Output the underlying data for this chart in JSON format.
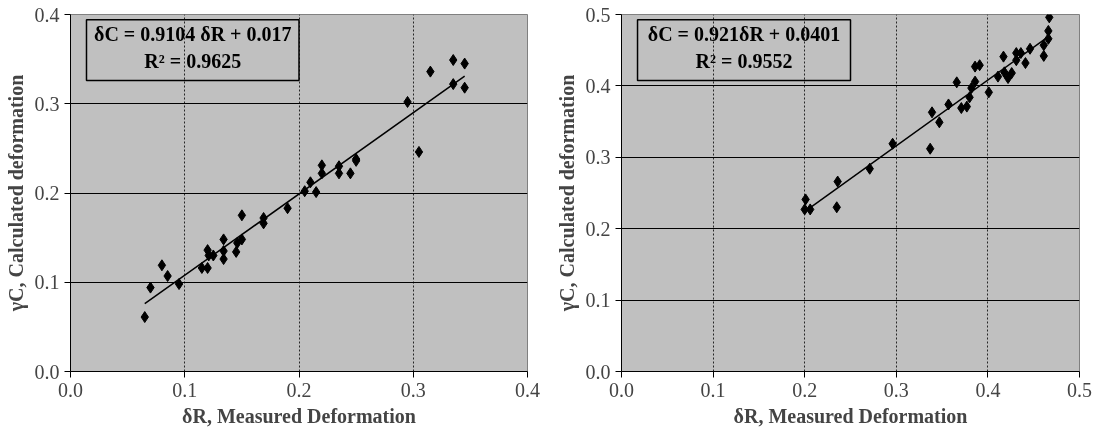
{
  "chart_data": [
    {
      "type": "scatter",
      "xlabel": "δR, Measured Deformation",
      "ylabel": "γC, Calculated deformation",
      "annotations": [
        "δC = 0.9104 δR + 0.017",
        "R² = 0.9625"
      ],
      "xlim": [
        0.0,
        0.4
      ],
      "ylim": [
        0.0,
        0.4
      ],
      "xticks": [
        {
          "value": 0,
          "label": "0.0"
        },
        0.1,
        0.2,
        0.3,
        0.4
      ],
      "yticks": [
        {
          "value": 0,
          "label": "0.0"
        },
        0.1,
        0.2,
        0.3,
        0.4
      ],
      "grid": true,
      "series": [
        {
          "type": "scatter",
          "marker": "diamond",
          "color": "#000000",
          "x": [
            0.065,
            0.07,
            0.08,
            0.085,
            0.095,
            0.115,
            0.12,
            0.12,
            0.121,
            0.125,
            0.134,
            0.134,
            0.134,
            0.145,
            0.146,
            0.15,
            0.15,
            0.169,
            0.169,
            0.19,
            0.205,
            0.21,
            0.215,
            0.22,
            0.22,
            0.235,
            0.235,
            0.245,
            0.25,
            0.25,
            0.295,
            0.305,
            0.315,
            0.335,
            0.335,
            0.345,
            0.345
          ],
          "values": [
            0.061,
            0.094,
            0.119,
            0.107,
            0.098,
            0.116,
            0.136,
            0.116,
            0.13,
            0.13,
            0.148,
            0.135,
            0.126,
            0.134,
            0.144,
            0.148,
            0.175,
            0.172,
            0.166,
            0.183,
            0.202,
            0.212,
            0.201,
            0.231,
            0.222,
            0.23,
            0.222,
            0.222,
            0.238,
            0.236,
            0.302,
            0.246,
            0.336,
            0.349,
            0.322,
            0.345,
            0.318
          ]
        },
        {
          "type": "line",
          "line_style": "solid",
          "color": "#000000",
          "x": [
            0.065,
            0.345
          ],
          "values": [
            0.076,
            0.331
          ]
        }
      ]
    },
    {
      "type": "scatter",
      "xlabel": "δR, Measured Deformation",
      "ylabel": "γC, Calculated deformation",
      "annotations": [
        "δC = 0.921δR + 0.0401",
        "R² = 0.9552"
      ],
      "xlim": [
        0.0,
        0.5
      ],
      "ylim": [
        0.0,
        0.5
      ],
      "xticks": [
        {
          "value": 0,
          "label": "0.0"
        },
        0.1,
        0.2,
        0.3,
        0.4,
        0.5
      ],
      "yticks": [
        {
          "value": 0,
          "label": "0.0"
        },
        0.1,
        0.2,
        0.3,
        0.4,
        0.5
      ],
      "grid": true,
      "series": [
        {
          "type": "scatter",
          "marker": "diamond",
          "color": "#000000",
          "x": [
            0.201,
            0.2,
            0.206,
            0.236,
            0.235,
            0.271,
            0.296,
            0.337,
            0.339,
            0.347,
            0.357,
            0.366,
            0.371,
            0.377,
            0.38,
            0.382,
            0.386,
            0.386,
            0.391,
            0.401,
            0.411,
            0.417,
            0.418,
            0.422,
            0.426,
            0.431,
            0.431,
            0.436,
            0.441,
            0.446,
            0.461,
            0.461,
            0.466,
            0.466,
            0.467
          ],
          "values": [
            0.241,
            0.227,
            0.227,
            0.266,
            0.23,
            0.284,
            0.319,
            0.312,
            0.363,
            0.349,
            0.374,
            0.405,
            0.369,
            0.371,
            0.384,
            0.397,
            0.406,
            0.427,
            0.429,
            0.391,
            0.413,
            0.441,
            0.419,
            0.411,
            0.418,
            0.436,
            0.446,
            0.446,
            0.432,
            0.452,
            0.442,
            0.457,
            0.477,
            0.466,
            0.496
          ]
        },
        {
          "type": "line",
          "line_style": "solid",
          "color": "#000000",
          "x": [
            0.2,
            0.466
          ],
          "values": [
            0.224,
            0.469
          ]
        }
      ]
    }
  ]
}
